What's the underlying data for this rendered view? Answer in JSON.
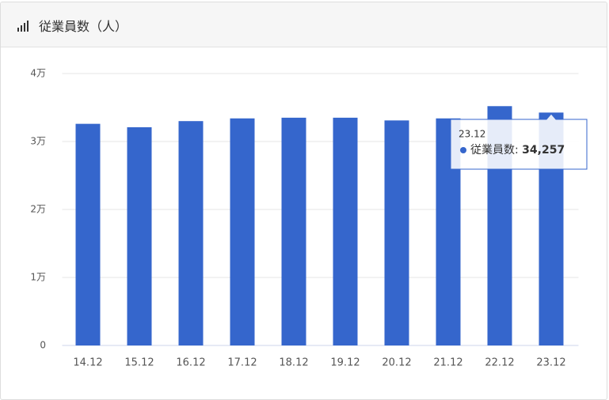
{
  "title": "従業員数（人）",
  "chart_data": {
    "type": "bar",
    "categories": [
      "14.12",
      "15.12",
      "16.12",
      "17.12",
      "18.12",
      "19.12",
      "20.12",
      "21.12",
      "22.12",
      "23.12"
    ],
    "series": [
      {
        "name": "従業員数",
        "color": "#3566cc",
        "values": [
          32600,
          32100,
          33000,
          33400,
          33500,
          33500,
          33100,
          33400,
          35200,
          34257
        ]
      }
    ],
    "ylim": [
      0,
      40000
    ],
    "yticks": [
      0,
      {
        "value": 10000,
        "label": "1万"
      },
      {
        "value": 20000,
        "label": "2万"
      },
      {
        "value": 30000,
        "label": "3万"
      },
      {
        "value": 40000,
        "label": "4万"
      }
    ],
    "grid": true,
    "tooltip": {
      "category": "23.12",
      "value_label": "34,257"
    }
  }
}
